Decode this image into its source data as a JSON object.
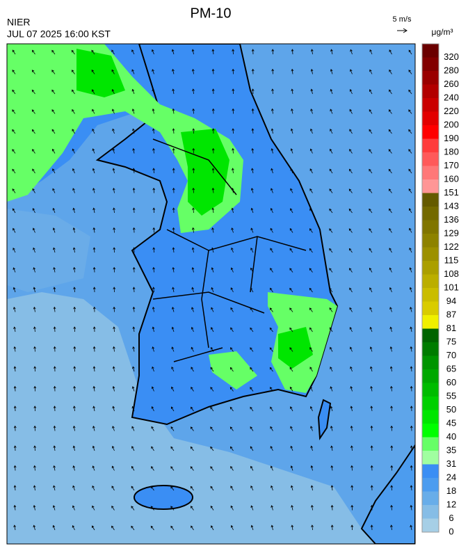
{
  "header": {
    "title": "PM-10",
    "agency": "NIER",
    "datetime": "JUL 07 2025 16:00 KST",
    "wind_scale": "5 m/s"
  },
  "legend": {
    "unit": "μg/m³",
    "labels": [
      "320",
      "280",
      "260",
      "240",
      "220",
      "200",
      "190",
      "180",
      "170",
      "160",
      "151",
      "143",
      "136",
      "129",
      "122",
      "115",
      "108",
      "101",
      "94",
      "87",
      "81",
      "75",
      "70",
      "65",
      "60",
      "55",
      "50",
      "45",
      "40",
      "35",
      "31",
      "24",
      "18",
      "12",
      "6",
      "0"
    ],
    "colors": [
      "#6b0000",
      "#820000",
      "#9a0000",
      "#b20000",
      "#ca0000",
      "#e20000",
      "#ff0000",
      "#ff3c3c",
      "#ff5a5a",
      "#ff7878",
      "#ff9696",
      "#645a00",
      "#736900",
      "#807500",
      "#8d8200",
      "#9c9000",
      "#ab9f00",
      "#bbae00",
      "#cabd00",
      "#d9cc00",
      "#f0f000",
      "#006400",
      "#007c00",
      "#009400",
      "#00a800",
      "#00bc00",
      "#00d000",
      "#00e600",
      "#00ff00",
      "#66ff66",
      "#a0ffa0",
      "#3a8ef4",
      "#4c9cef",
      "#68ade9",
      "#86bde6",
      "#a6cfe6"
    ]
  }
}
